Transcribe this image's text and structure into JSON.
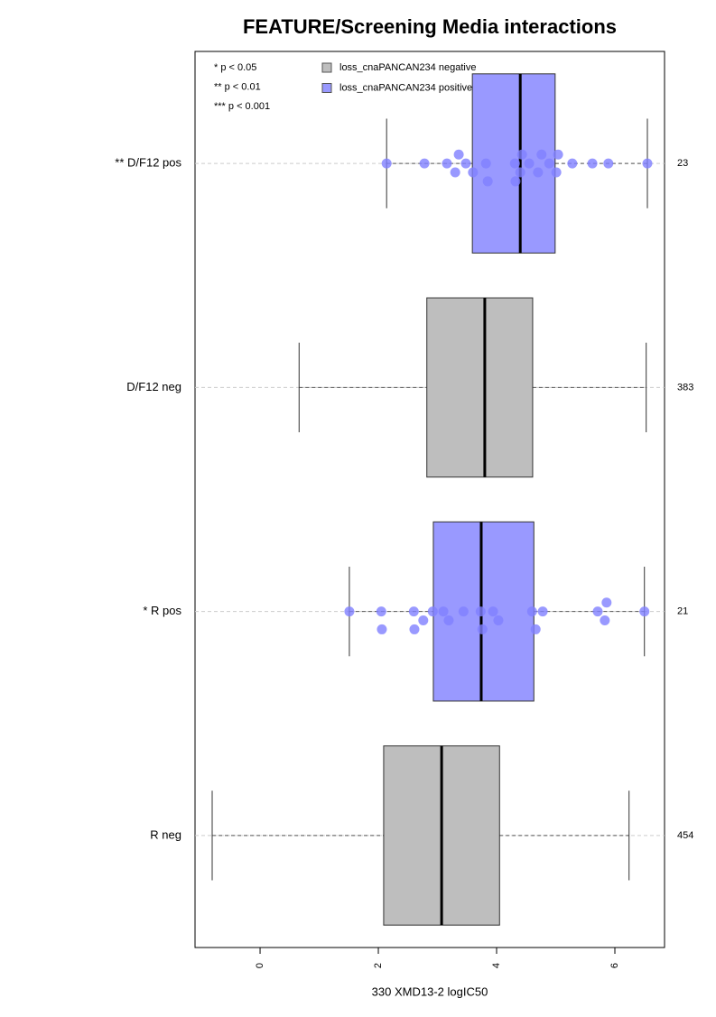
{
  "chart_data": {
    "type": "boxplot",
    "title": "FEATURE/Screening Media interactions",
    "x_label": "330 XMD13-2 logIC50",
    "xlim": [
      -1.1,
      6.84
    ],
    "xticks": [
      0,
      2,
      4,
      6
    ],
    "significance_notes": [
      "* p < 0.05",
      "** p < 0.01",
      "*** p < 0.001"
    ],
    "series": [
      {
        "name": "loss_cnaPANCAN234 negative",
        "color": "#bebebe",
        "point_color": "#aaaaaa"
      },
      {
        "name": "loss_cnaPANCAN234 positive",
        "color": "#9999ff",
        "point_color": "#7f7fff"
      }
    ],
    "boxes": [
      {
        "label": "** D/F12 pos",
        "n": 23,
        "series": 1,
        "whisker_low": 2.14,
        "q1": 3.59,
        "median": 4.4,
        "q3": 4.99,
        "whisker_high": 6.55,
        "points": [
          2.14,
          2.78,
          3.16,
          3.3,
          3.36,
          3.48,
          3.6,
          3.82,
          3.85,
          4.31,
          4.32,
          4.4,
          4.43,
          4.55,
          4.7,
          4.76,
          4.89,
          5.01,
          5.04,
          5.28,
          5.62,
          5.89,
          6.55
        ]
      },
      {
        "label": "D/F12 neg",
        "n": 383,
        "series": 0,
        "whisker_low": 0.66,
        "q1": 2.82,
        "median": 3.8,
        "q3": 4.61,
        "whisker_high": 6.53
      },
      {
        "label": "* R pos",
        "n": 21,
        "series": 1,
        "whisker_low": 1.51,
        "q1": 2.93,
        "median": 3.74,
        "q3": 4.63,
        "whisker_high": 6.5,
        "points": [
          1.51,
          2.05,
          2.06,
          2.6,
          2.61,
          2.76,
          2.92,
          3.1,
          3.19,
          3.44,
          3.73,
          3.76,
          3.94,
          4.03,
          4.6,
          4.66,
          4.78,
          5.71,
          5.83,
          5.86,
          6.5
        ]
      },
      {
        "label": "R neg",
        "n": 454,
        "series": 0,
        "whisker_low": -0.81,
        "q1": 2.09,
        "median": 3.07,
        "q3": 4.05,
        "whisker_high": 6.24
      }
    ]
  }
}
